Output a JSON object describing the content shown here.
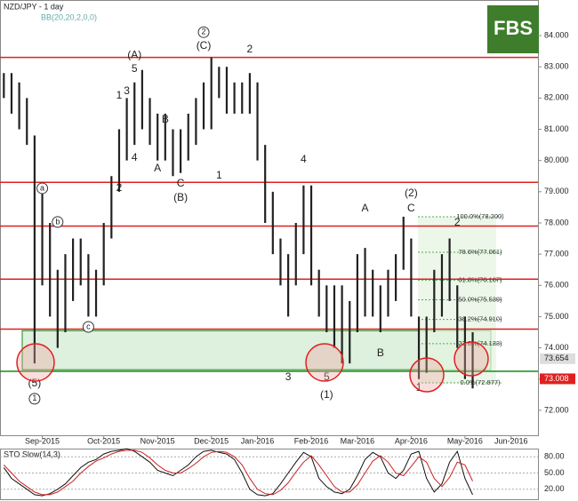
{
  "chart_data": {
    "type": "hilo",
    "title": "NZD/JPY - 1 day",
    "indicator_label": "BB(20,20,2,0,0)",
    "logo": "FBS",
    "categories": [
      null,
      null,
      null,
      null,
      null,
      "Sep-2015",
      null,
      null,
      null,
      null,
      null,
      null,
      null,
      "Oct-2015",
      null,
      null,
      null,
      null,
      null,
      null,
      "Nov-2015",
      null,
      null,
      null,
      null,
      null,
      null,
      "Dec-2015",
      null,
      null,
      null,
      null,
      null,
      "Jan-2016",
      null,
      null,
      null,
      null,
      null,
      null,
      "Feb-2016",
      null,
      null,
      null,
      null,
      null,
      "Mar-2016",
      null,
      null,
      null,
      null,
      null,
      null,
      "Apr-2016",
      null,
      null,
      null,
      null,
      null,
      null,
      "May-2016",
      null,
      null,
      null,
      null,
      null,
      "Jun-2016",
      null,
      null,
      null
    ],
    "high": [
      82.8,
      82.8,
      82.5,
      82,
      80.8,
      79.2,
      78,
      76.5,
      77,
      77.5,
      77.5,
      77,
      76.5,
      78,
      79.5,
      81,
      82,
      82.5,
      82.9,
      82,
      81.5,
      81.5,
      81,
      81,
      81.5,
      82,
      82.5,
      83.3,
      83,
      83,
      82.5,
      82.5,
      82.8,
      82.5,
      80.5,
      79,
      77.5,
      77,
      78,
      79.2,
      79.2,
      76.5,
      76,
      76,
      76,
      75.5,
      77,
      77.2,
      76.5,
      76,
      76.5,
      77,
      78.2,
      77.5,
      75,
      75,
      76.5,
      77,
      77.5,
      76,
      75,
      74.5,
      null,
      null,
      null,
      null,
      null,
      null,
      null,
      null
    ],
    "low": [
      82,
      81.5,
      81,
      80.5,
      73.5,
      76,
      75,
      74,
      74.5,
      75.5,
      76,
      75,
      75,
      76,
      77.5,
      79,
      80,
      80.5,
      81,
      80.5,
      80,
      80,
      79.5,
      79.6,
      80,
      80.5,
      81,
      81,
      82,
      81.5,
      81.5,
      81.5,
      81.5,
      80,
      78,
      77,
      76,
      75,
      76,
      77,
      76,
      75,
      74.5,
      74,
      73.5,
      73.5,
      74.5,
      75,
      75,
      74.5,
      75,
      75.5,
      76.5,
      75,
      73,
      73.2,
      74.5,
      75,
      75.5,
      74,
      73,
      72.7,
      null,
      null,
      null,
      null,
      null,
      null,
      null,
      null
    ],
    "bar_color": "#222222",
    "ylim": [
      71.2,
      85.14
    ],
    "yticks": [
      {
        "value": 72,
        "label": "72.000"
      },
      {
        "value": 73,
        "label": "73.000"
      },
      {
        "value": 74,
        "label": "74.000"
      },
      {
        "value": 75,
        "label": "75.000"
      },
      {
        "value": 76,
        "label": "76.000"
      },
      {
        "value": 77,
        "label": "77.000"
      },
      {
        "value": 78,
        "label": "78.000"
      },
      {
        "value": 79,
        "label": "79.000"
      },
      {
        "value": 80,
        "label": "80.000"
      },
      {
        "value": 81,
        "label": "81.000"
      },
      {
        "value": 82,
        "label": "82.000"
      },
      {
        "value": 83,
        "label": "83.000"
      },
      {
        "value": 84,
        "label": "84.000"
      }
    ],
    "resistance_levels": [
      83.3,
      79.3,
      77.9,
      76.2,
      74.6
    ],
    "resistance_color": "#e02020",
    "support_level": 73.25,
    "support_color": "#1a8a1a",
    "zone": [
      73.3,
      74.55
    ],
    "zone_color": "#c8e6c8",
    "fib_levels": [
      {
        "value": 78.2,
        "label": "100.0%(78.200)"
      },
      {
        "value": 77.061,
        "label": "78.6%(77.061)"
      },
      {
        "value": 76.167,
        "label": "61.8%(76.167)"
      },
      {
        "value": 75.539,
        "label": "50.0%(75.539)"
      },
      {
        "value": 74.91,
        "label": "38.2%(74.910)"
      },
      {
        "value": 74.133,
        "label": "23.6%(74.133)"
      },
      {
        "value": 72.877,
        "label": "0.0%(72.877)"
      }
    ],
    "price_labels": [
      {
        "value": 73.654,
        "label": "73.654",
        "color": "#dddddd"
      },
      {
        "value": 73.008,
        "label": "73.008",
        "color": "#e02020"
      }
    ],
    "annotations": [
      {
        "text": "(5)",
        "index": 4,
        "price": 72.85,
        "circled": false
      },
      {
        "text": "1",
        "index": 4,
        "price": 72.37,
        "circled": true
      },
      {
        "text": "a",
        "index": 5,
        "price": 79.11,
        "circled": true
      },
      {
        "text": "b",
        "index": 7,
        "price": 78.03,
        "circled": true
      },
      {
        "text": "c",
        "index": 11,
        "price": 74.67,
        "circled": true
      },
      {
        "text": "(A)",
        "index": 17,
        "price": 83.37,
        "circled": false
      },
      {
        "text": "5",
        "index": 17,
        "price": 82.92,
        "circled": false
      },
      {
        "text": "1",
        "index": 15,
        "price": 82.07,
        "circled": false
      },
      {
        "text": "3",
        "index": 16,
        "price": 82.21,
        "circled": false
      },
      {
        "text": "4",
        "index": 17,
        "price": 80.08,
        "circled": false
      },
      {
        "text": "2",
        "index": 15,
        "price": 79.11,
        "circled": false
      },
      {
        "text": "A",
        "index": 20,
        "price": 79.74,
        "circled": false
      },
      {
        "text": "B",
        "index": 21,
        "price": 81.3,
        "circled": false
      },
      {
        "text": "C",
        "index": 23,
        "price": 79.25,
        "circled": false
      },
      {
        "text": "(B)",
        "index": 23,
        "price": 78.8,
        "circled": false
      },
      {
        "text": "2",
        "index": 26,
        "price": 84.11,
        "circled": true
      },
      {
        "text": "(C)",
        "index": 26,
        "price": 83.66,
        "circled": false
      },
      {
        "text": "1",
        "index": 28,
        "price": 79.51,
        "circled": false
      },
      {
        "text": "2",
        "index": 32,
        "price": 83.55,
        "circled": false
      },
      {
        "text": "4",
        "index": 39,
        "price": 80.02,
        "circled": false
      },
      {
        "text": "3",
        "index": 37,
        "price": 73.05,
        "circled": false
      },
      {
        "text": "5",
        "index": 42,
        "price": 73.05,
        "circled": false
      },
      {
        "text": "(1)",
        "index": 42,
        "price": 72.48,
        "circled": false
      },
      {
        "text": "A",
        "index": 47,
        "price": 78.46,
        "circled": false
      },
      {
        "text": "B",
        "index": 49,
        "price": 73.82,
        "circled": false
      },
      {
        "text": "(2)",
        "index": 53,
        "price": 78.94,
        "circled": false
      },
      {
        "text": "C",
        "index": 53,
        "price": 78.46,
        "circled": false
      },
      {
        "text": "1",
        "index": 54,
        "price": 72.71,
        "circled": false
      },
      {
        "text": "2",
        "index": 59,
        "price": 78.0,
        "circled": false
      }
    ],
    "oscillator": {
      "label": "STO Slow(14,3)",
      "ylim": [
        0,
        100
      ],
      "yticks": [
        {
          "value": 80,
          "label": "80.00"
        },
        {
          "value": 50,
          "label": "50.00"
        },
        {
          "value": 20,
          "label": "20.00"
        }
      ],
      "series": [
        {
          "color": "#111111",
          "values": [
            60,
            40,
            30,
            20,
            10,
            8,
            12,
            20,
            30,
            45,
            60,
            70,
            75,
            85,
            90,
            92,
            95,
            90,
            80,
            70,
            55,
            50,
            45,
            55,
            65,
            80,
            90,
            92,
            88,
            85,
            75,
            50,
            20,
            10,
            8,
            12,
            30,
            50,
            70,
            88,
            80,
            40,
            25,
            15,
            12,
            20,
            45,
            75,
            88,
            80,
            50,
            40,
            55,
            85,
            90,
            40,
            15,
            30,
            70,
            90,
            40,
            10,
            null,
            null,
            null,
            null,
            null,
            null,
            null,
            null
          ]
        },
        {
          "color": "#cc2020",
          "values": [
            65,
            50,
            35,
            25,
            15,
            10,
            10,
            15,
            25,
            35,
            50,
            62,
            72,
            78,
            85,
            90,
            92,
            92,
            88,
            78,
            65,
            55,
            50,
            50,
            58,
            68,
            80,
            88,
            90,
            88,
            80,
            65,
            40,
            20,
            12,
            10,
            18,
            32,
            52,
            70,
            82,
            65,
            45,
            25,
            15,
            15,
            28,
            50,
            72,
            82,
            70,
            50,
            45,
            62,
            80,
            70,
            40,
            25,
            42,
            70,
            65,
            35,
            null,
            null,
            null,
            null,
            null,
            null,
            null,
            null
          ]
        }
      ]
    }
  }
}
